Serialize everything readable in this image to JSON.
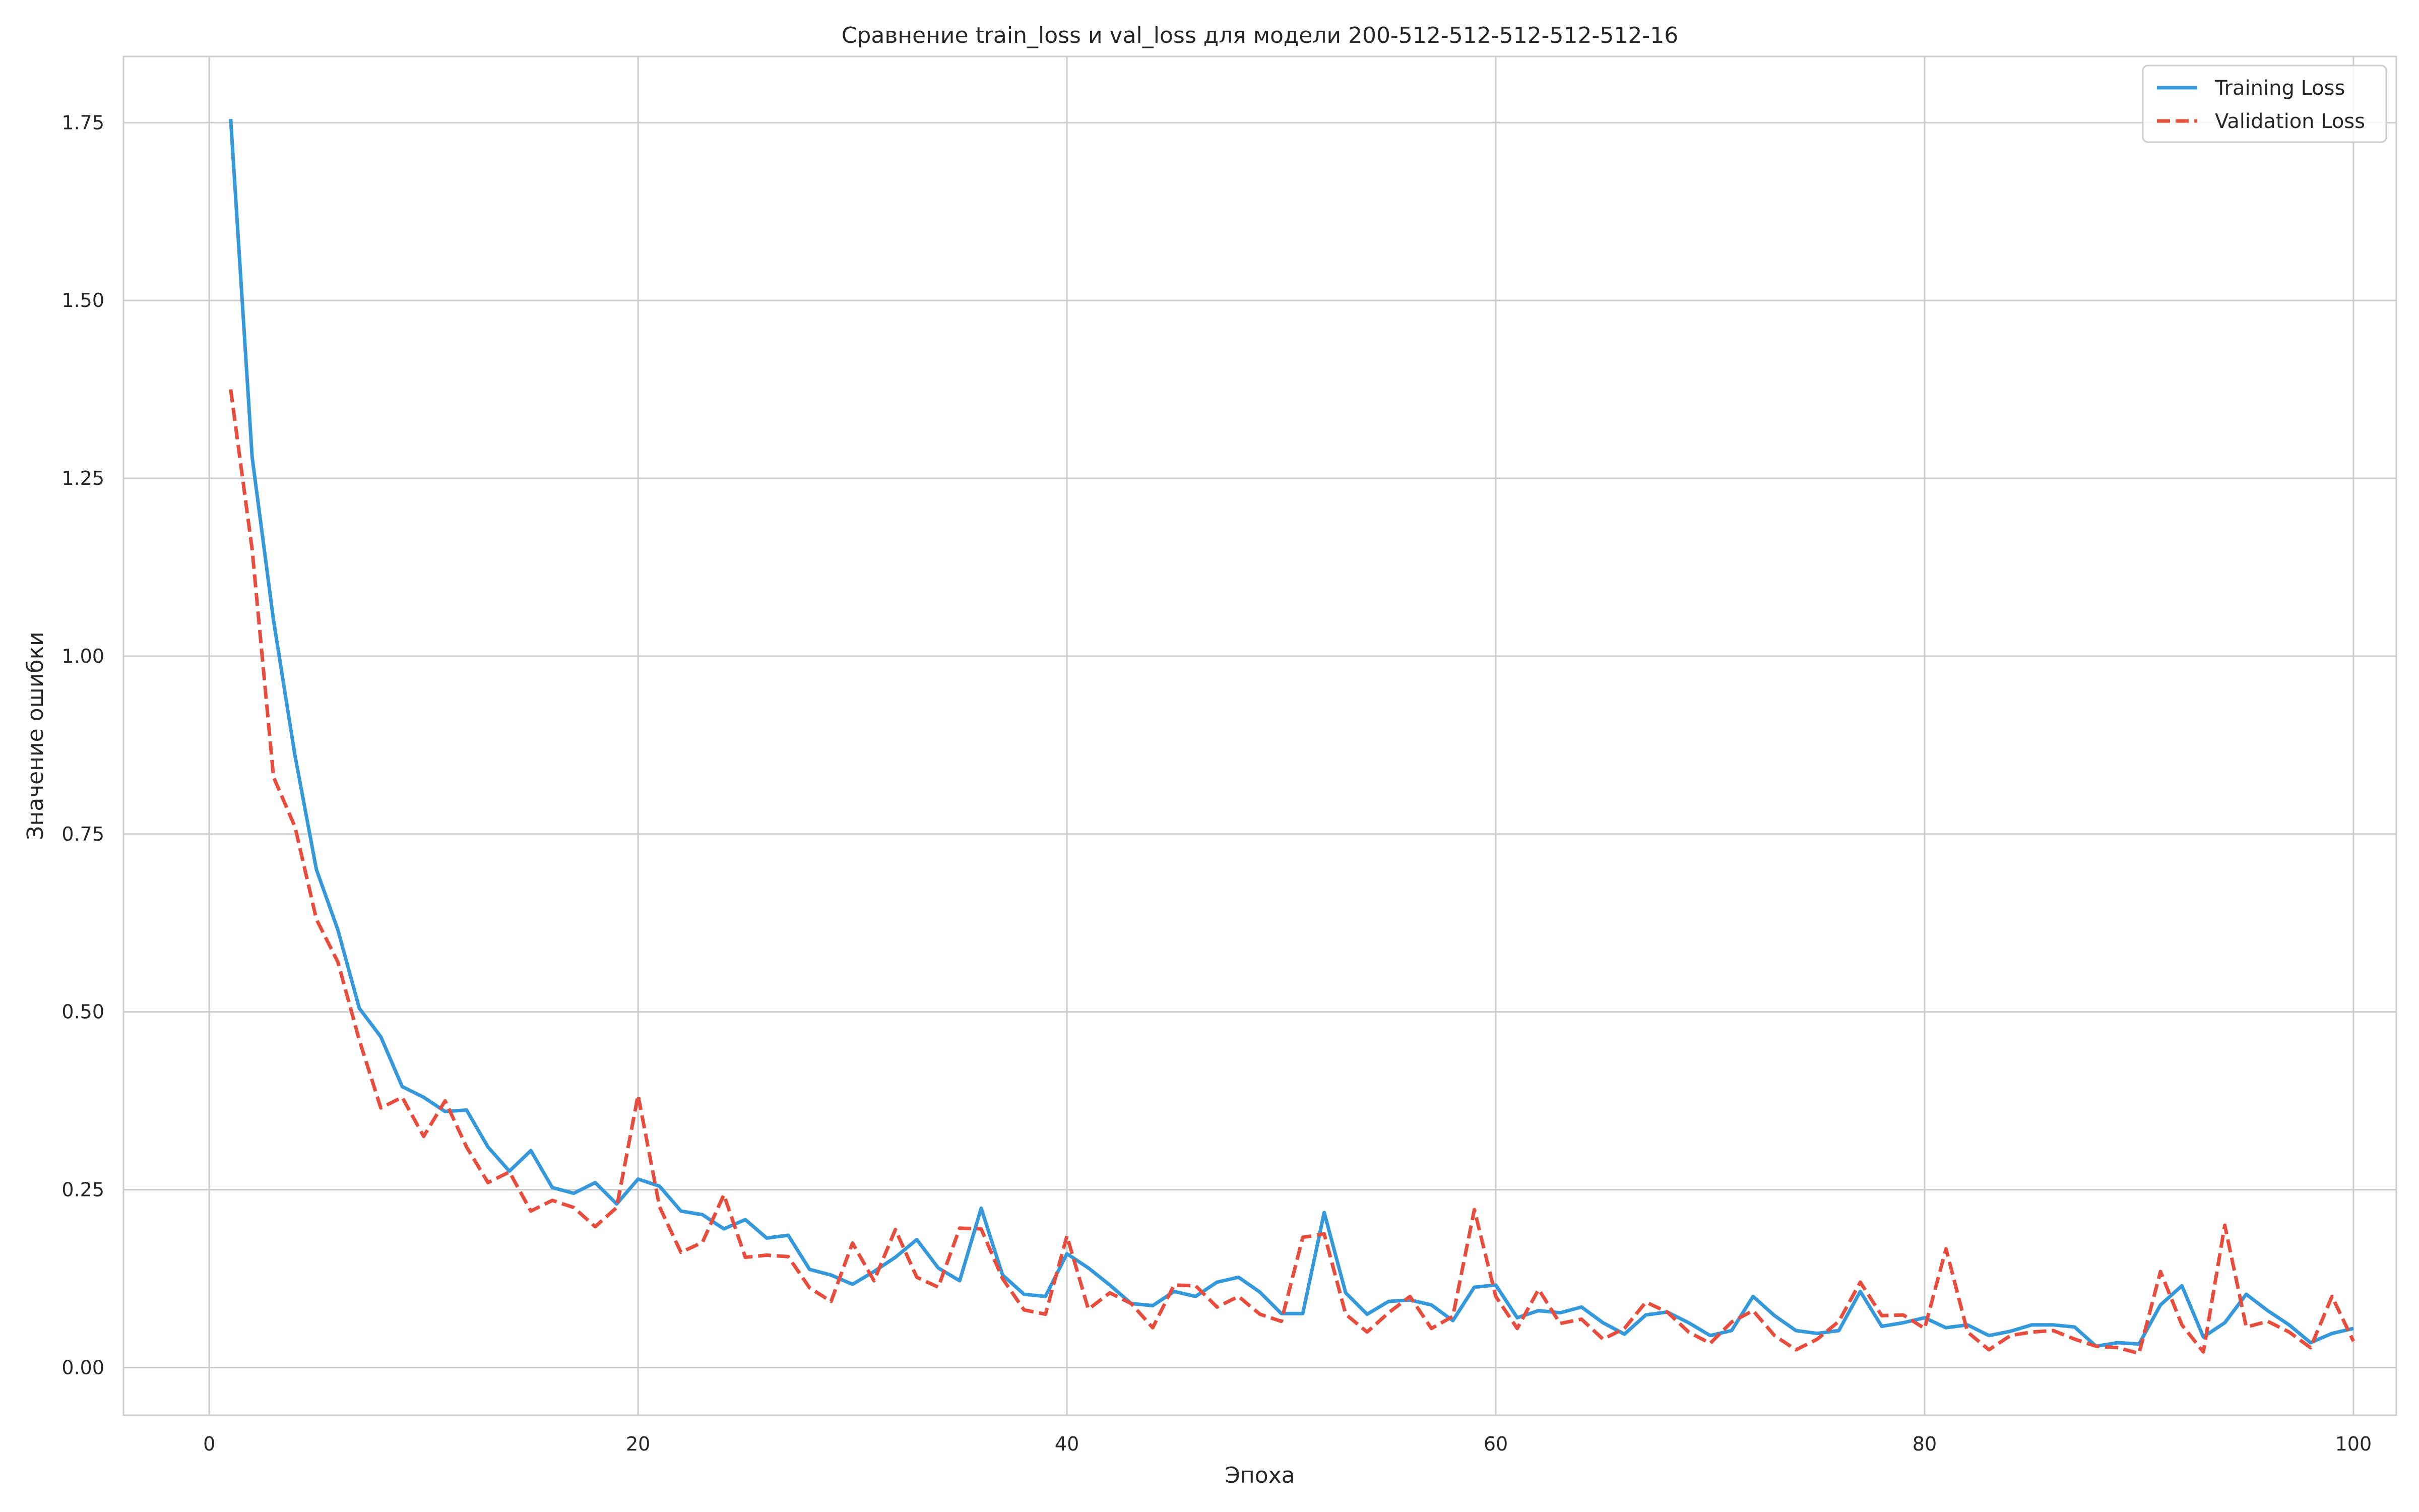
{
  "chart_data": {
    "type": "line",
    "title": "Сравнение train_loss и val_loss для модели 200-512-512-512-512-512-16",
    "xlabel": "Эпоха",
    "ylabel": "Значение ошибки",
    "xlim": [
      -4,
      102
    ],
    "ylim": [
      -0.067,
      1.843
    ],
    "xticks": [
      0,
      20,
      40,
      60,
      80,
      100
    ],
    "xtick_labels": [
      "0",
      "20",
      "40",
      "60",
      "80",
      "100"
    ],
    "yticks": [
      0.0,
      0.25,
      0.5,
      0.75,
      1.0,
      1.25,
      1.5,
      1.75
    ],
    "ytick_labels": [
      "0.00",
      "0.25",
      "0.50",
      "0.75",
      "1.00",
      "1.25",
      "1.50",
      "1.75"
    ],
    "grid": true,
    "legend_position": "top-right",
    "x": [
      1,
      2,
      3,
      4,
      5,
      6,
      7,
      8,
      9,
      10,
      11,
      12,
      13,
      14,
      15,
      16,
      17,
      18,
      19,
      20,
      21,
      22,
      23,
      24,
      25,
      26,
      27,
      28,
      29,
      30,
      31,
      32,
      33,
      34,
      35,
      36,
      37,
      38,
      39,
      40,
      41,
      42,
      43,
      44,
      45,
      46,
      47,
      48,
      49,
      50,
      51,
      52,
      53,
      54,
      55,
      56,
      57,
      58,
      59,
      60,
      61,
      62,
      63,
      64,
      65,
      66,
      67,
      68,
      69,
      70,
      71,
      72,
      73,
      74,
      75,
      76,
      77,
      78,
      79,
      80,
      81,
      82,
      83,
      84,
      85,
      86,
      87,
      88,
      89,
      90,
      91,
      92,
      93,
      94,
      95,
      96,
      97,
      98,
      99,
      100
    ],
    "series": [
      {
        "name": "Training Loss",
        "color": "#3498db",
        "style": "solid",
        "values": [
          1.755,
          1.28,
          1.05,
          0.86,
          0.7,
          0.615,
          0.505,
          0.465,
          0.395,
          0.38,
          0.36,
          0.362,
          0.31,
          0.276,
          0.305,
          0.253,
          0.245,
          0.26,
          0.23,
          0.265,
          0.255,
          0.22,
          0.215,
          0.195,
          0.208,
          0.182,
          0.186,
          0.138,
          0.13,
          0.117,
          0.135,
          0.155,
          0.18,
          0.14,
          0.122,
          0.224,
          0.13,
          0.103,
          0.1,
          0.16,
          0.14,
          0.116,
          0.09,
          0.087,
          0.107,
          0.1,
          0.12,
          0.127,
          0.106,
          0.076,
          0.076,
          0.218,
          0.105,
          0.075,
          0.093,
          0.095,
          0.088,
          0.066,
          0.113,
          0.116,
          0.07,
          0.08,
          0.077,
          0.085,
          0.063,
          0.047,
          0.074,
          0.078,
          0.063,
          0.045,
          0.052,
          0.1,
          0.073,
          0.052,
          0.048,
          0.052,
          0.107,
          0.058,
          0.063,
          0.07,
          0.056,
          0.06,
          0.045,
          0.051,
          0.06,
          0.06,
          0.057,
          0.03,
          0.035,
          0.033,
          0.088,
          0.115,
          0.043,
          0.063,
          0.103,
          0.08,
          0.06,
          0.035,
          0.048,
          0.055
        ]
      },
      {
        "name": "Validation Loss",
        "color": "#e74c3c",
        "style": "dashed",
        "values": [
          1.375,
          1.15,
          0.83,
          0.76,
          0.63,
          0.57,
          0.46,
          0.365,
          0.38,
          0.325,
          0.375,
          0.31,
          0.26,
          0.275,
          0.22,
          0.235,
          0.225,
          0.198,
          0.225,
          0.383,
          0.226,
          0.162,
          0.176,
          0.243,
          0.155,
          0.158,
          0.156,
          0.112,
          0.093,
          0.175,
          0.122,
          0.194,
          0.127,
          0.113,
          0.196,
          0.195,
          0.125,
          0.081,
          0.075,
          0.185,
          0.082,
          0.105,
          0.09,
          0.056,
          0.116,
          0.115,
          0.085,
          0.1,
          0.075,
          0.065,
          0.183,
          0.188,
          0.075,
          0.05,
          0.077,
          0.1,
          0.055,
          0.072,
          0.222,
          0.1,
          0.055,
          0.11,
          0.062,
          0.068,
          0.04,
          0.055,
          0.092,
          0.078,
          0.05,
          0.034,
          0.064,
          0.08,
          0.045,
          0.025,
          0.04,
          0.065,
          0.12,
          0.073,
          0.074,
          0.055,
          0.167,
          0.05,
          0.025,
          0.045,
          0.05,
          0.052,
          0.04,
          0.03,
          0.028,
          0.02,
          0.135,
          0.06,
          0.022,
          0.2,
          0.057,
          0.065,
          0.05,
          0.028,
          0.1,
          0.037
        ]
      }
    ]
  }
}
